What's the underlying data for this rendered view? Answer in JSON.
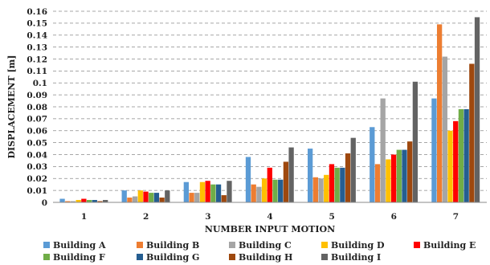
{
  "chart_data": {
    "type": "bar",
    "title": "",
    "xlabel": "NUMBER INPUT MOTION",
    "ylabel": "DISPLACEMENT [m]",
    "ylim": [
      0,
      0.16
    ],
    "ytick_step": 0.01,
    "ytick_labels": [
      "0",
      "0.01",
      "0.02",
      "0.03",
      "0.04",
      "0.05",
      "0.06",
      "0.07",
      "0.08",
      "0.09",
      "0.1",
      "0.11",
      "0.12",
      "0.13",
      "0.14",
      "0.15",
      "0.16"
    ],
    "grid": true,
    "legend_position": "bottom",
    "categories": [
      "1",
      "2",
      "3",
      "4",
      "5",
      "6",
      "7"
    ],
    "series": [
      {
        "name": "Building A",
        "color": "#5B9BD5",
        "values": [
          0.003,
          0.01,
          0.017,
          0.038,
          0.045,
          0.063,
          0.087
        ]
      },
      {
        "name": "Building B",
        "color": "#ED7D31",
        "values": [
          0.001,
          0.004,
          0.008,
          0.015,
          0.021,
          0.032,
          0.149
        ]
      },
      {
        "name": "Building C",
        "color": "#A5A5A5",
        "values": [
          0.001,
          0.005,
          0.008,
          0.013,
          0.02,
          0.087,
          0.122
        ]
      },
      {
        "name": "Building D",
        "color": "#FFC000",
        "values": [
          0.002,
          0.01,
          0.017,
          0.02,
          0.023,
          0.036,
          0.06
        ]
      },
      {
        "name": "Building E",
        "color": "#FF0000",
        "values": [
          0.003,
          0.009,
          0.018,
          0.029,
          0.032,
          0.04,
          0.068
        ]
      },
      {
        "name": "Building F",
        "color": "#70AD47",
        "values": [
          0.002,
          0.008,
          0.015,
          0.019,
          0.029,
          0.044,
          0.078
        ]
      },
      {
        "name": "Building G",
        "color": "#255E91",
        "values": [
          0.002,
          0.008,
          0.015,
          0.019,
          0.029,
          0.044,
          0.078
        ]
      },
      {
        "name": "Building H",
        "color": "#9E480E",
        "values": [
          0.001,
          0.004,
          0.006,
          0.034,
          0.041,
          0.051,
          0.116
        ]
      },
      {
        "name": "Building I",
        "color": "#636363",
        "values": [
          0.002,
          0.01,
          0.018,
          0.046,
          0.054,
          0.101,
          0.155
        ]
      }
    ]
  }
}
